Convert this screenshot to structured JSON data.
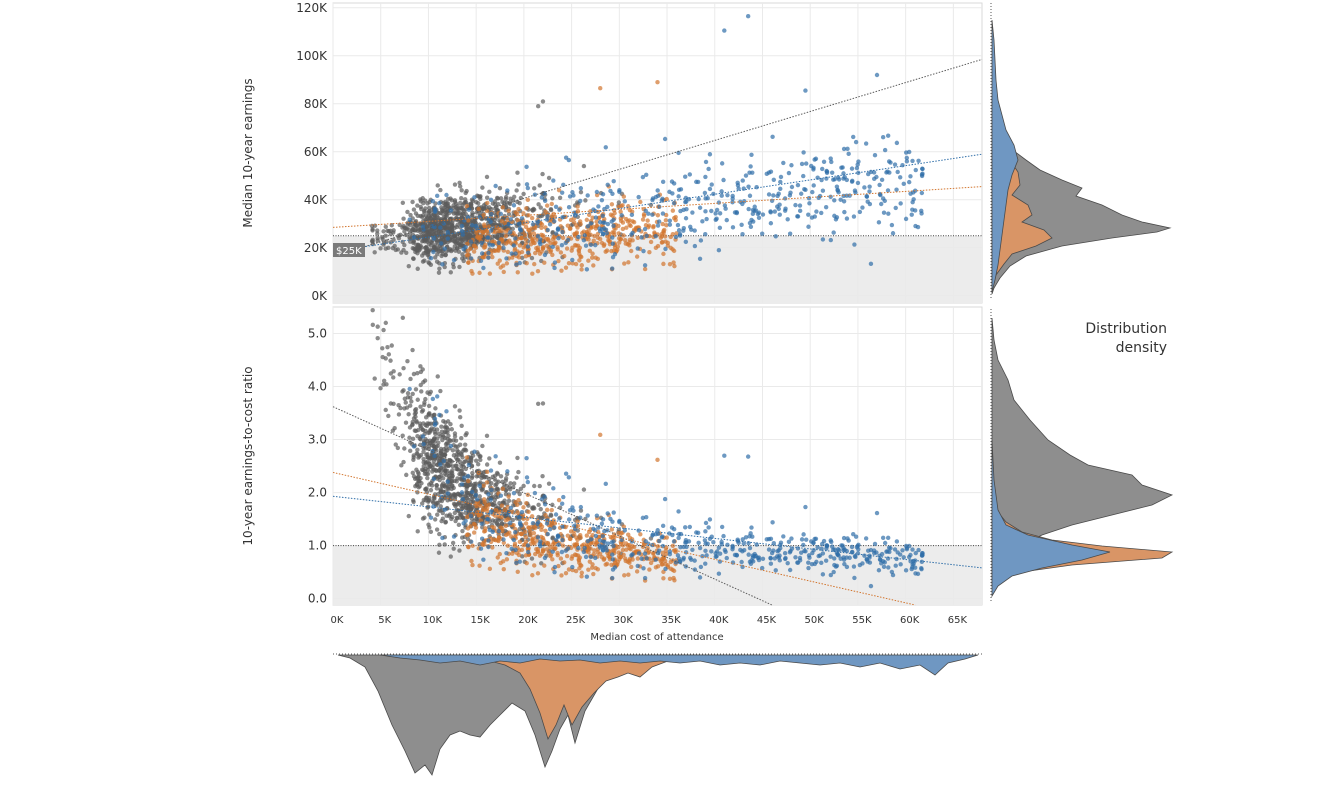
{
  "chart_data": [
    {
      "type": "scatter",
      "title": "",
      "xlabel": "",
      "ylabel": "Median 10-year earnings",
      "xlim": [
        0,
        68000
      ],
      "ylim": [
        -3000,
        122000
      ],
      "y_ticks": [
        0,
        20000,
        40000,
        60000,
        80000,
        100000,
        120000
      ],
      "y_tick_labels": [
        "0K",
        "20K",
        "40K",
        "60K",
        "80K",
        "100K",
        "120K"
      ],
      "threshold": {
        "value": 25000,
        "label": "$25K"
      },
      "grid": true,
      "series": [
        {
          "color": "#5b5b5b",
          "trend": [
            [
              0,
              16500
            ],
            [
              68000,
              98500
            ]
          ]
        },
        {
          "color": "#d2752e",
          "trend": [
            [
              0,
              28500
            ],
            [
              68000,
              45500
            ]
          ]
        },
        {
          "color": "#2f6ea8",
          "trend": [
            [
              0,
              18500
            ],
            [
              68000,
              59000
            ]
          ]
        }
      ]
    },
    {
      "type": "scatter",
      "title": "",
      "xlabel": "Median cost of attendance",
      "ylabel": "10-year earnings-to-cost ratio",
      "xlim": [
        0,
        68000
      ],
      "ylim": [
        -0.12,
        5.5
      ],
      "x_ticks": [
        0,
        5000,
        10000,
        15000,
        20000,
        25000,
        30000,
        35000,
        40000,
        45000,
        50000,
        55000,
        60000,
        65000
      ],
      "x_tick_labels": [
        "0K",
        "5K",
        "10K",
        "15K",
        "20K",
        "25K",
        "30K",
        "35K",
        "40K",
        "45K",
        "50K",
        "55K",
        "60K",
        "65K"
      ],
      "y_ticks": [
        0,
        1,
        2,
        3,
        4,
        5
      ],
      "y_tick_labels": [
        "0.0",
        "1.0",
        "2.0",
        "3.0",
        "4.0",
        "5.0"
      ],
      "threshold": {
        "value": 1.0,
        "label": ""
      },
      "grid": true,
      "series": [
        {
          "color": "#5b5b5b",
          "trend": [
            [
              0,
              3.62
            ],
            [
              46000,
              -0.12
            ]
          ]
        },
        {
          "color": "#d2752e",
          "trend": [
            [
              0,
              2.38
            ],
            [
              61000,
              -0.12
            ]
          ]
        },
        {
          "color": "#2f6ea8",
          "trend": [
            [
              0,
              1.93
            ],
            [
              68000,
              0.58
            ]
          ]
        }
      ]
    }
  ],
  "density": {
    "label_line1": "Distribution",
    "label_line2": "density"
  }
}
